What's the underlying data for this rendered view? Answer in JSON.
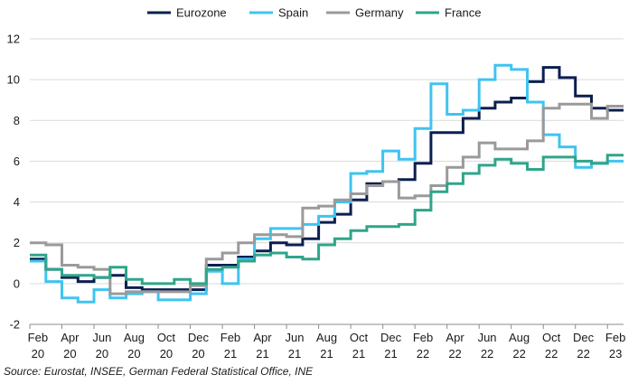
{
  "source_note": "Source: Eurostat, INSEE, German Federal Statistical Office, INE",
  "chart_data": {
    "type": "line",
    "step": true,
    "ylim": [
      -2,
      12
    ],
    "yticks": [
      -2,
      0,
      2,
      4,
      6,
      8,
      10,
      12
    ],
    "xlim": [
      0,
      37
    ],
    "grid": true,
    "legend_position": "top",
    "x_ticks": [
      {
        "month": "Feb",
        "year": "20"
      },
      {
        "month": "Apr",
        "year": "20"
      },
      {
        "month": "Jun",
        "year": "20"
      },
      {
        "month": "Aug",
        "year": "20"
      },
      {
        "month": "Oct",
        "year": "20"
      },
      {
        "month": "Dec",
        "year": "20"
      },
      {
        "month": "Feb",
        "year": "21"
      },
      {
        "month": "Apr",
        "year": "21"
      },
      {
        "month": "Jun",
        "year": "21"
      },
      {
        "month": "Aug",
        "year": "21"
      },
      {
        "month": "Oct",
        "year": "21"
      },
      {
        "month": "Dec",
        "year": "21"
      },
      {
        "month": "Feb",
        "year": "22"
      },
      {
        "month": "Apr",
        "year": "22"
      },
      {
        "month": "Jun",
        "year": "22"
      },
      {
        "month": "Aug",
        "year": "22"
      },
      {
        "month": "Oct",
        "year": "22"
      },
      {
        "month": "Dec",
        "year": "22"
      },
      {
        "month": "Feb",
        "year": "23"
      }
    ],
    "x": [
      "Feb 20",
      "Mar 20",
      "Apr 20",
      "May 20",
      "Jun 20",
      "Jul 20",
      "Aug 20",
      "Sep 20",
      "Oct 20",
      "Nov 20",
      "Dec 20",
      "Jan 21",
      "Feb 21",
      "Mar 21",
      "Apr 21",
      "May 21",
      "Jun 21",
      "Jul 21",
      "Aug 21",
      "Sep 21",
      "Oct 21",
      "Nov 21",
      "Dec 21",
      "Jan 22",
      "Feb 22",
      "Mar 22",
      "Apr 22",
      "May 22",
      "Jun 22",
      "Jul 22",
      "Aug 22",
      "Sep 22",
      "Oct 22",
      "Nov 22",
      "Dec 22",
      "Jan 23",
      "Feb 23"
    ],
    "series": [
      {
        "name": "Eurozone",
        "color": "#0b1f4f",
        "values": [
          1.2,
          0.7,
          0.3,
          0.1,
          0.3,
          0.4,
          -0.2,
          -0.3,
          -0.3,
          -0.3,
          -0.3,
          0.9,
          0.9,
          1.3,
          1.6,
          2.0,
          1.9,
          2.2,
          3.0,
          3.4,
          4.1,
          4.9,
          5.0,
          5.1,
          5.9,
          7.4,
          7.4,
          8.1,
          8.6,
          8.9,
          9.1,
          9.9,
          10.6,
          10.1,
          9.2,
          8.6,
          8.5
        ]
      },
      {
        "name": "Spain",
        "color": "#3fc4f0",
        "values": [
          1.1,
          0.1,
          -0.7,
          -0.9,
          -0.3,
          -0.7,
          -0.5,
          -0.4,
          -0.8,
          -0.8,
          -0.5,
          0.6,
          0.0,
          1.2,
          2.2,
          2.7,
          2.7,
          2.9,
          3.3,
          4.0,
          5.4,
          5.5,
          6.5,
          6.1,
          7.6,
          9.8,
          8.3,
          8.5,
          10.0,
          10.7,
          10.5,
          8.9,
          7.3,
          6.7,
          5.7,
          5.9,
          6.0
        ]
      },
      {
        "name": "Germany",
        "color": "#9a9a9a",
        "values": [
          2.0,
          1.9,
          0.9,
          0.8,
          0.7,
          -0.5,
          -0.4,
          -0.4,
          -0.4,
          -0.4,
          -0.1,
          1.2,
          1.5,
          2.0,
          2.4,
          2.4,
          2.3,
          3.7,
          3.8,
          4.1,
          4.4,
          4.8,
          5.0,
          4.2,
          4.3,
          4.8,
          5.7,
          6.2,
          6.9,
          6.6,
          6.6,
          7.0,
          8.6,
          8.8,
          8.8,
          8.1,
          8.7
        ]
      },
      {
        "name": "France",
        "color": "#2fa58b",
        "values": [
          1.4,
          0.7,
          0.4,
          0.4,
          0.3,
          0.8,
          0.2,
          0.0,
          0.0,
          0.2,
          0.0,
          0.7,
          0.8,
          1.1,
          1.4,
          1.5,
          1.3,
          1.2,
          1.9,
          2.2,
          2.6,
          2.8,
          2.8,
          2.9,
          3.6,
          4.5,
          4.9,
          5.4,
          5.8,
          6.1,
          5.9,
          5.6,
          6.2,
          6.2,
          6.0,
          5.9,
          6.3
        ]
      }
    ]
  }
}
